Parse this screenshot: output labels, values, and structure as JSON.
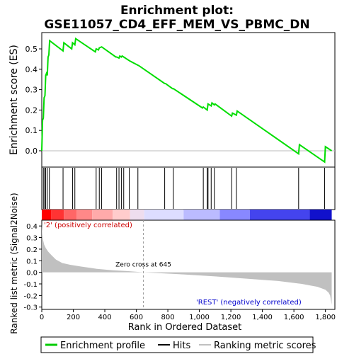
{
  "chart_data": {
    "type": "line",
    "title_line1": "Enrichment plot:",
    "title_line2": "GSE11057_CD4_EFF_MEM_VS_PBMC_DN",
    "top_panel": {
      "ylabel": "Enrichment score (ES)",
      "ylim": [
        -0.08,
        0.58
      ],
      "yticks": [
        0.0,
        0.1,
        0.2,
        0.3,
        0.4,
        0.5
      ],
      "ytick_labels": [
        "0.0",
        "0.1",
        "0.2",
        "0.3",
        "0.4",
        "0.5"
      ],
      "es_profile_x": [
        0,
        5,
        10,
        15,
        20,
        25,
        30,
        35,
        40,
        45,
        50,
        135,
        140,
        190,
        195,
        210,
        215,
        340,
        345,
        360,
        365,
        380,
        470,
        475,
        490,
        495,
        505,
        510,
        520,
        560,
        610,
        615,
        780,
        785,
        830,
        835,
        1020,
        1025,
        1050,
        1055,
        1075,
        1080,
        1095,
        1100,
        1205,
        1210,
        1235,
        1240,
        1630,
        1635,
        1795,
        1800,
        1840
      ],
      "es_profile_y": [
        0.0,
        0.15,
        0.16,
        0.26,
        0.27,
        0.37,
        0.38,
        0.37,
        0.46,
        0.47,
        0.54,
        0.49,
        0.53,
        0.5,
        0.53,
        0.52,
        0.55,
        0.485,
        0.5,
        0.495,
        0.505,
        0.51,
        0.46,
        0.46,
        0.455,
        0.465,
        0.46,
        0.465,
        0.46,
        0.44,
        0.42,
        0.418,
        0.33,
        0.33,
        0.305,
        0.305,
        0.21,
        0.215,
        0.2,
        0.23,
        0.22,
        0.235,
        0.225,
        0.23,
        0.17,
        0.185,
        0.175,
        0.195,
        -0.015,
        0.03,
        -0.055,
        0.02,
        0.0
      ]
    },
    "hits_x": [
      10,
      18,
      25,
      35,
      48,
      135,
      195,
      210,
      345,
      365,
      380,
      475,
      490,
      505,
      520,
      555,
      610,
      780,
      835,
      1025,
      1050,
      1055,
      1075,
      1095,
      1205,
      1235,
      1630,
      1795
    ],
    "bottom_panel": {
      "ylabel": "Ranked list metric (Signal2Noise)",
      "xlabel": "Rank in Ordered Dataset",
      "xlim": [
        0,
        1860
      ],
      "ylim": [
        -0.32,
        0.45
      ],
      "yticks": [
        -0.3,
        -0.2,
        -0.1,
        0.0,
        0.1,
        0.2,
        0.3,
        0.4
      ],
      "ytick_labels": [
        "-0.3",
        "-0.2",
        "-0.1",
        "0.0",
        "0.1",
        "0.2",
        "0.3",
        "0.4"
      ],
      "xticks": [
        0,
        200,
        400,
        600,
        800,
        1000,
        1200,
        1400,
        1600,
        1800
      ],
      "xtick_labels": [
        "0",
        "200",
        "400",
        "600",
        "800",
        "1,000",
        "1,200",
        "1,400",
        "1,600",
        "1,800"
      ],
      "metric_x": [
        0,
        3,
        8,
        15,
        25,
        40,
        60,
        90,
        130,
        180,
        250,
        350,
        450,
        550,
        645,
        750,
        900,
        1100,
        1300,
        1500,
        1650,
        1750,
        1800,
        1820,
        1830,
        1840
      ],
      "metric_y": [
        0.42,
        0.33,
        0.28,
        0.24,
        0.21,
        0.18,
        0.15,
        0.11,
        0.08,
        0.065,
        0.05,
        0.03,
        0.018,
        0.01,
        0.0,
        -0.008,
        -0.018,
        -0.035,
        -0.055,
        -0.075,
        -0.1,
        -0.125,
        -0.15,
        -0.175,
        -0.2,
        -0.28
      ],
      "zero_cross_rank": 645,
      "zero_cross_label": "Zero cross at 645",
      "pos_label": "'2' (positively correlated)",
      "neg_label": "'REST' (negatively correlated)",
      "heatmap_colors": [
        "#ff0000",
        "#ff3333",
        "#ff6666",
        "#ff8888",
        "#ffaaaa",
        "#ffcccc",
        "#eeddee",
        "#ddddff",
        "#bbbbff",
        "#8888ff",
        "#4444ee",
        "#1111cc"
      ],
      "heatmap_segments_end_rank": [
        60,
        140,
        220,
        320,
        450,
        560,
        650,
        900,
        1130,
        1320,
        1700,
        1840
      ]
    },
    "legend": {
      "items": [
        {
          "label": "Enrichment profile",
          "color": "#00cc00"
        },
        {
          "label": "Hits",
          "color": "#000000"
        },
        {
          "label": "Ranking metric scores",
          "color": "#c0c0c0"
        }
      ]
    },
    "colors": {
      "es_line": "#00dd00",
      "metric_fill": "#c0c0c0",
      "pos_label": "#cc0000",
      "neg_label": "#0000cc"
    }
  }
}
